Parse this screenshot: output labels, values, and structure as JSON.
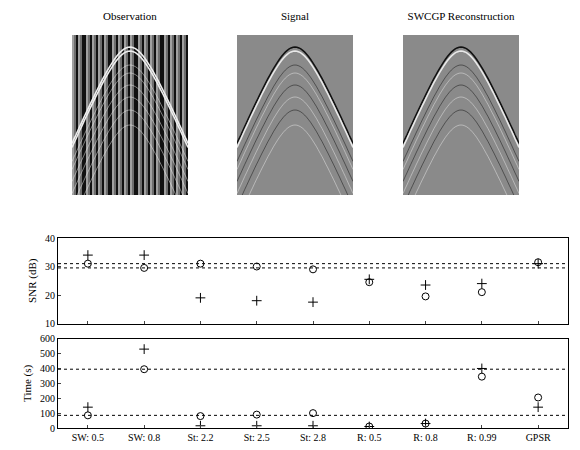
{
  "images": {
    "titles": [
      "Observation",
      "Signal",
      "SWCGP Reconstruction"
    ]
  },
  "chart_data": [
    {
      "type": "scatter",
      "y_label": "SNR (dB)",
      "categories": [
        "SW: 0.5",
        "SW: 0.8",
        "St: 2.2",
        "St: 2.5",
        "St: 2.8",
        "R: 0.5",
        "R: 0.8",
        "R: 0.99",
        "GPSR"
      ],
      "series": [
        {
          "marker": "plus",
          "color": "#000000",
          "values": [
            34,
            34,
            19,
            18,
            17.5,
            25.5,
            23.5,
            24,
            31
          ]
        },
        {
          "marker": "circle",
          "color": "#000000",
          "values": [
            31,
            29.5,
            31,
            30,
            29,
            24.5,
            19.5,
            21,
            31.5
          ]
        }
      ],
      "reference_lines": [
        31,
        29.5
      ],
      "ylim": [
        10,
        40
      ],
      "yticks": [
        10,
        20,
        30,
        40
      ],
      "tick_labels": "y",
      "grid": false
    },
    {
      "type": "scatter",
      "y_label": "Time (s)",
      "categories": [
        "SW: 0.5",
        "SW: 0.8",
        "St: 2.2",
        "St: 2.5",
        "St: 2.8",
        "R: 0.5",
        "R: 0.8",
        "R: 0.99",
        "GPSR"
      ],
      "series": [
        {
          "marker": "plus",
          "color": "#000000",
          "values": [
            140,
            530,
            15,
            15,
            15,
            10,
            30,
            400,
            140
          ]
        },
        {
          "marker": "circle",
          "color": "#000000",
          "values": [
            85,
            395,
            80,
            90,
            100,
            10,
            30,
            345,
            205
          ]
        }
      ],
      "reference_lines": [
        395,
        85
      ],
      "ylim": [
        0,
        600
      ],
      "yticks": [
        0,
        100,
        200,
        300,
        400,
        500,
        600
      ],
      "grid": false
    }
  ]
}
